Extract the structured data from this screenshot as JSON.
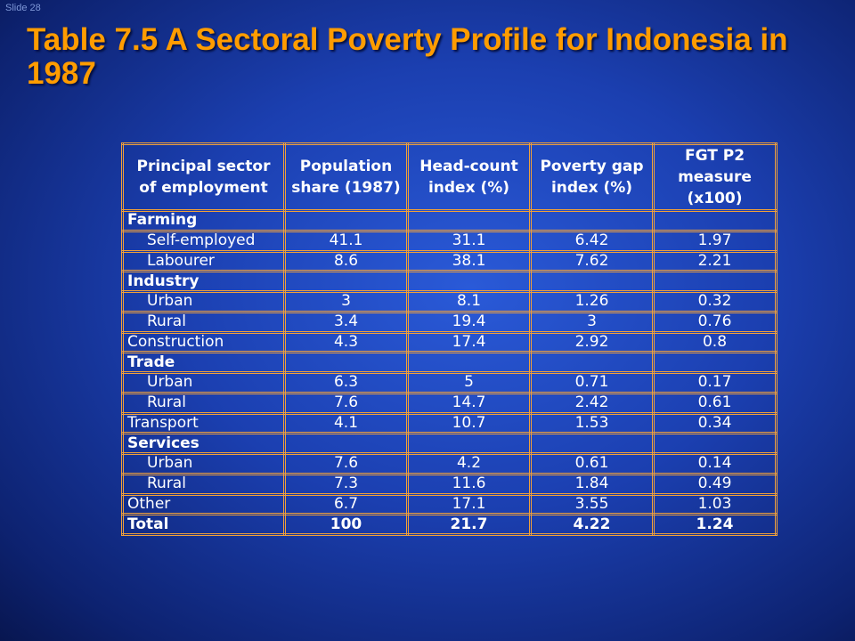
{
  "slide_label": "Slide 28",
  "title": "Table 7.5 A Sectoral Poverty Profile for Indonesia in 1987",
  "table": {
    "header": [
      "Principal sector of employment",
      "Population share (1987)",
      "Head-count index (%)",
      "Poverty gap index (%)",
      "FGT P2 measure (x100)"
    ],
    "rows": [
      {
        "label": "Farming",
        "rows": [
          [
            "Self-employed",
            "41.1",
            "31.1",
            "6.42",
            "1.97"
          ],
          [
            "Labourer",
            "8.6",
            "38.1",
            "7.62",
            "2.21"
          ]
        ]
      },
      {
        "label": "Industry",
        "rows": [
          [
            "Urban",
            "3",
            "8.1",
            "1.26",
            "0.32"
          ],
          [
            "Rural",
            "3.4",
            "19.4",
            "3",
            "0.76"
          ]
        ]
      },
      [
        "Construction",
        "4.3",
        "17.4",
        "2.92",
        "0.8"
      ],
      {
        "label": "Trade",
        "rows": [
          [
            "Urban",
            "6.3",
            "5",
            "0.71",
            "0.17"
          ],
          [
            "Rural",
            "7.6",
            "14.7",
            "2.42",
            "0.61"
          ]
        ]
      },
      [
        "Transport",
        "4.1",
        "10.7",
        "1.53",
        "0.34"
      ],
      {
        "label": "Services",
        "rows": [
          [
            "Urban",
            "7.6",
            "4.2",
            "0.61",
            "0.14"
          ],
          [
            "Rural",
            "7.3",
            "11.6",
            "1.84",
            "0.49"
          ]
        ]
      },
      [
        "Other",
        "6.7",
        "17.1",
        "3.55",
        "1.03"
      ]
    ],
    "total": [
      "Total",
      "100",
      "21.7",
      "4.22",
      "1.24"
    ]
  }
}
